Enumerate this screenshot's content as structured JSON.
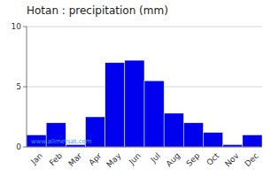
{
  "chart_data": {
    "type": "bar",
    "title": "Hotan : precipitation (mm)",
    "categories": [
      "Jan",
      "Feb",
      "Mar",
      "Apr",
      "May",
      "Jun",
      "Jul",
      "Aug",
      "Sep",
      "Oct",
      "Nov",
      "Dec"
    ],
    "values": [
      1.0,
      2.0,
      0.2,
      2.5,
      7.0,
      7.2,
      5.5,
      2.8,
      2.0,
      1.2,
      0.2,
      1.0
    ],
    "color": "#0000EE",
    "ylim": [
      0,
      10
    ],
    "yticks": [
      0,
      5,
      10
    ],
    "grid": true,
    "annotations": [
      "www.allmetsat.com"
    ]
  }
}
